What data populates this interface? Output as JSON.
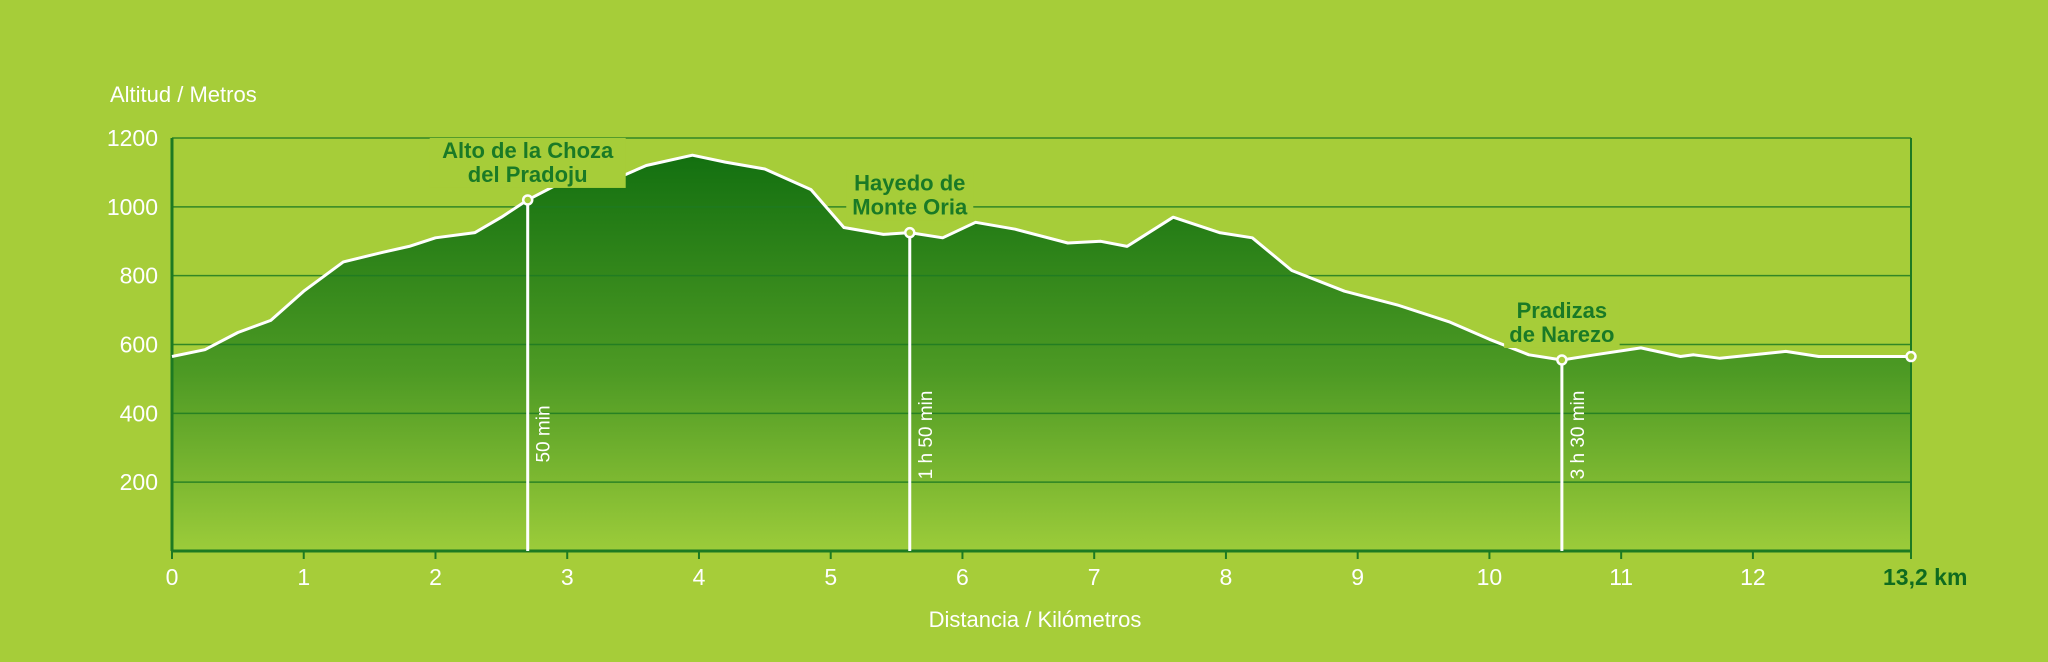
{
  "chart_data": {
    "type": "area",
    "ylabel": "Altitud / Metros",
    "xlabel": "Distancia / Kilómetros",
    "xlim": [
      0,
      13.2
    ],
    "ylim": [
      0,
      1200
    ],
    "x_ticks": [
      "0",
      "1",
      "2",
      "3",
      "4",
      "5",
      "6",
      "7",
      "8",
      "9",
      "10",
      "11",
      "12",
      "13,2 km"
    ],
    "y_ticks": [
      "1200",
      "1000",
      "800",
      "600",
      "400",
      "200"
    ],
    "grid": true,
    "colors": {
      "background": "#a6cd39",
      "fill_top": "#137010",
      "fill_bottom": "#9ccc3a",
      "axis": "#1d7a22",
      "line": "#ffffff",
      "label": "#1a7a26"
    },
    "profile": {
      "x": [
        0,
        0.25,
        0.5,
        0.75,
        1.0,
        1.3,
        1.6,
        1.8,
        2.0,
        2.3,
        2.5,
        2.7,
        2.9,
        3.1,
        3.3,
        3.6,
        3.95,
        4.2,
        4.5,
        4.85,
        5.1,
        5.4,
        5.6,
        5.85,
        6.1,
        6.4,
        6.8,
        7.05,
        7.25,
        7.6,
        7.95,
        8.2,
        8.5,
        8.9,
        9.3,
        9.7,
        10.0,
        10.3,
        10.55,
        10.8,
        11.15,
        11.45,
        11.55,
        11.75,
        12.25,
        12.5,
        13.2
      ],
      "y": [
        565,
        585,
        635,
        670,
        755,
        840,
        868,
        885,
        910,
        925,
        970,
        1020,
        1060,
        1080,
        1070,
        1120,
        1150,
        1130,
        1110,
        1050,
        940,
        920,
        925,
        910,
        955,
        935,
        895,
        900,
        885,
        970,
        925,
        910,
        815,
        755,
        715,
        665,
        615,
        570,
        555,
        570,
        590,
        565,
        570,
        560,
        580,
        565,
        565
      ]
    },
    "waypoints": [
      {
        "name_lines": [
          "Alto de la Choza",
          "del Pradoju"
        ],
        "x": 2.7,
        "y": 1020,
        "time": "50 min"
      },
      {
        "name_lines": [
          "Hayedo de",
          "Monte Oria"
        ],
        "x": 5.6,
        "y": 925,
        "time": "1 h 50 min"
      },
      {
        "name_lines": [
          "Pradizas",
          "de Narezo"
        ],
        "x": 10.55,
        "y": 555,
        "time": "3 h 30 min"
      }
    ],
    "end_point": {
      "x": 13.2,
      "y": 565
    }
  }
}
